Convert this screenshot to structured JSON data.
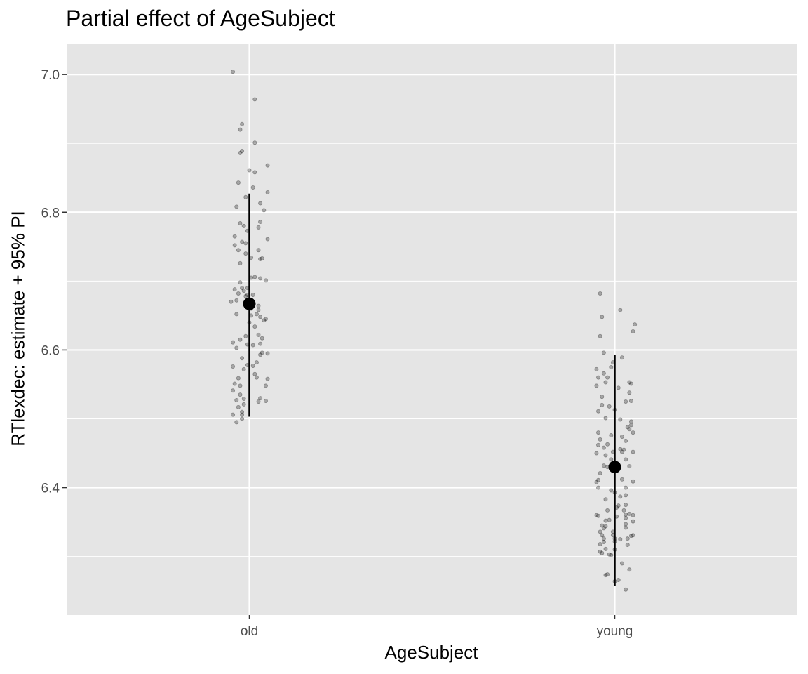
{
  "chart_data": {
    "type": "scatter",
    "title": "Partial effect of AgeSubject",
    "xlabel": "AgeSubject",
    "ylabel": "RTlexdec: estimate + 95% PI",
    "categories": [
      "old",
      "young"
    ],
    "ylim": [
      6.215,
      7.045
    ],
    "yticks": [
      6.4,
      6.6,
      6.8,
      7.0
    ],
    "ytick_labels": [
      "6.4",
      "6.6",
      "6.8",
      "7.0"
    ],
    "grid": true,
    "panel_background": "#e5e5e5",
    "grid_color": "#ffffff",
    "estimates": [
      {
        "category": "old",
        "estimate": 6.667,
        "lower": 6.503,
        "upper": 6.827
      },
      {
        "category": "young",
        "estimate": 6.43,
        "lower": 6.257,
        "upper": 6.593
      }
    ],
    "points": {
      "old": [
        [
          -0.09,
          7.004
        ],
        [
          0.03,
          6.964
        ],
        [
          -0.04,
          6.928
        ],
        [
          -0.05,
          6.92
        ],
        [
          0.03,
          6.901
        ],
        [
          -0.04,
          6.889
        ],
        [
          -0.05,
          6.886
        ],
        [
          0.1,
          6.868
        ],
        [
          0.0,
          6.861
        ],
        [
          0.03,
          6.858
        ],
        [
          -0.06,
          6.843
        ],
        [
          0.02,
          6.836
        ],
        [
          0.1,
          6.829
        ],
        [
          -0.02,
          6.822
        ],
        [
          0.06,
          6.813
        ],
        [
          -0.07,
          6.808
        ],
        [
          0.08,
          6.803
        ],
        [
          0.06,
          6.786
        ],
        [
          -0.05,
          6.784
        ],
        [
          -0.03,
          6.78
        ],
        [
          0.05,
          6.778
        ],
        [
          -0.01,
          6.773
        ],
        [
          -0.08,
          6.765
        ],
        [
          0.1,
          6.761
        ],
        [
          -0.04,
          6.757
        ],
        [
          -0.02,
          6.755
        ],
        [
          -0.08,
          6.752
        ],
        [
          -0.06,
          6.745
        ],
        [
          0.05,
          6.745
        ],
        [
          -0.02,
          6.74
        ],
        [
          0.01,
          6.734
        ],
        [
          0.07,
          6.733
        ],
        [
          0.06,
          6.732
        ],
        [
          -0.05,
          6.726
        ],
        [
          0.03,
          6.706
        ],
        [
          0.01,
          6.705
        ],
        [
          0.06,
          6.704
        ],
        [
          0.09,
          6.701
        ],
        [
          -0.05,
          6.698
        ],
        [
          -0.04,
          6.69
        ],
        [
          -0.01,
          6.69
        ],
        [
          -0.08,
          6.688
        ],
        [
          -0.03,
          6.686
        ],
        [
          -0.06,
          6.682
        ],
        [
          0.02,
          6.68
        ],
        [
          -0.01,
          6.68
        ],
        [
          -0.02,
          6.678
        ],
        [
          -0.07,
          6.672
        ],
        [
          -0.1,
          6.67
        ],
        [
          0.05,
          6.664
        ],
        [
          0.01,
          6.66
        ],
        [
          0.05,
          6.658
        ],
        [
          0.04,
          6.652
        ],
        [
          0.01,
          6.65
        ],
        [
          -0.07,
          6.652
        ],
        [
          0.06,
          6.648
        ],
        [
          0.09,
          6.645
        ],
        [
          0.0,
          6.64
        ],
        [
          0.08,
          6.643
        ],
        [
          0.03,
          6.634
        ],
        [
          0.05,
          6.622
        ],
        [
          -0.02,
          6.62
        ],
        [
          0.07,
          6.617
        ],
        [
          -0.05,
          6.615
        ],
        [
          -0.09,
          6.611
        ],
        [
          0.06,
          6.609
        ],
        [
          -0.01,
          6.608
        ],
        [
          0.02,
          6.607
        ],
        [
          -0.07,
          6.603
        ],
        [
          0.07,
          6.596
        ],
        [
          0.1,
          6.595
        ],
        [
          0.06,
          6.593
        ],
        [
          -0.04,
          6.588
        ],
        [
          0.04,
          6.582
        ],
        [
          0.02,
          6.577
        ],
        [
          -0.01,
          6.578
        ],
        [
          -0.09,
          6.576
        ],
        [
          -0.03,
          6.572
        ],
        [
          0.03,
          6.565
        ],
        [
          0.04,
          6.56
        ],
        [
          -0.06,
          6.559
        ],
        [
          0.1,
          6.558
        ],
        [
          -0.08,
          6.551
        ],
        [
          -0.05,
          6.548
        ],
        [
          0.09,
          6.548
        ],
        [
          -0.09,
          6.541
        ],
        [
          -0.05,
          6.535
        ],
        [
          0.06,
          6.53
        ],
        [
          -0.03,
          6.529
        ],
        [
          -0.07,
          6.527
        ],
        [
          0.09,
          6.526
        ],
        [
          0.05,
          6.525
        ],
        [
          -0.03,
          6.521
        ],
        [
          -0.06,
          6.517
        ],
        [
          -0.04,
          6.51
        ],
        [
          -0.04,
          6.506
        ],
        [
          -0.09,
          6.506
        ],
        [
          -0.04,
          6.5
        ],
        [
          -0.07,
          6.495
        ]
      ],
      "young": [
        [
          -0.08,
          6.682
        ],
        [
          0.03,
          6.658
        ],
        [
          -0.07,
          6.648
        ],
        [
          0.11,
          6.637
        ],
        [
          0.1,
          6.627
        ],
        [
          -0.08,
          6.62
        ],
        [
          -0.06,
          6.596
        ],
        [
          0.04,
          6.589
        ],
        [
          -0.01,
          6.582
        ],
        [
          -0.02,
          6.575
        ],
        [
          -0.1,
          6.572
        ],
        [
          -0.06,
          6.566
        ],
        [
          -0.09,
          6.56
        ],
        [
          -0.04,
          6.56
        ],
        [
          -0.05,
          6.553
        ],
        [
          0.08,
          6.553
        ],
        [
          0.09,
          6.551
        ],
        [
          -0.1,
          6.548
        ],
        [
          0.02,
          6.545
        ],
        [
          0.08,
          6.538
        ],
        [
          -0.07,
          6.532
        ],
        [
          0.09,
          6.526
        ],
        [
          -0.07,
          6.52
        ],
        [
          0.06,
          6.525
        ],
        [
          -0.03,
          6.518
        ],
        [
          0.0,
          6.513
        ],
        [
          -0.09,
          6.511
        ],
        [
          -0.05,
          6.501
        ],
        [
          0.03,
          6.499
        ],
        [
          0.09,
          6.496
        ],
        [
          0.09,
          6.491
        ],
        [
          0.07,
          6.488
        ],
        [
          0.08,
          6.485
        ],
        [
          -0.09,
          6.48
        ],
        [
          0.1,
          6.48
        ],
        [
          -0.02,
          6.476
        ],
        [
          0.04,
          6.474
        ],
        [
          -0.08,
          6.47
        ],
        [
          0.06,
          6.468
        ],
        [
          -0.04,
          6.463
        ],
        [
          -0.09,
          6.462
        ],
        [
          -0.06,
          6.458
        ],
        [
          0.03,
          6.456
        ],
        [
          0.05,
          6.455
        ],
        [
          0.04,
          6.452
        ],
        [
          -0.01,
          6.452
        ],
        [
          -0.1,
          6.45
        ],
        [
          0.1,
          6.452
        ],
        [
          -0.05,
          6.447
        ],
        [
          0.06,
          6.441
        ],
        [
          -0.02,
          6.441
        ],
        [
          -0.06,
          6.432
        ],
        [
          0.08,
          6.431
        ],
        [
          -0.04,
          6.43
        ],
        [
          0.0,
          6.426
        ],
        [
          -0.08,
          6.421
        ],
        [
          0.04,
          6.412
        ],
        [
          -0.09,
          6.411
        ],
        [
          -0.1,
          6.408
        ],
        [
          0.1,
          6.409
        ],
        [
          0.06,
          6.4
        ],
        [
          -0.09,
          6.4
        ],
        [
          -0.02,
          6.396
        ],
        [
          0.0,
          6.393
        ],
        [
          0.06,
          6.389
        ],
        [
          0.03,
          6.387
        ],
        [
          -0.05,
          6.383
        ],
        [
          0.06,
          6.375
        ],
        [
          0.02,
          6.374
        ],
        [
          0.01,
          6.371
        ],
        [
          -0.04,
          6.367
        ],
        [
          0.05,
          6.367
        ],
        [
          0.08,
          6.362
        ],
        [
          0.06,
          6.361
        ],
        [
          0.1,
          6.36
        ],
        [
          -0.1,
          6.36
        ],
        [
          -0.09,
          6.359
        ],
        [
          0.01,
          6.358
        ],
        [
          0.06,
          6.356
        ],
        [
          -0.03,
          6.353
        ],
        [
          -0.05,
          6.352
        ],
        [
          0.1,
          6.351
        ],
        [
          0.06,
          6.347
        ],
        [
          -0.07,
          6.345
        ],
        [
          -0.05,
          6.344
        ],
        [
          0.06,
          6.342
        ],
        [
          -0.06,
          6.341
        ],
        [
          -0.08,
          6.336
        ],
        [
          -0.01,
          6.336
        ],
        [
          -0.01,
          6.331
        ],
        [
          -0.07,
          6.331
        ],
        [
          0.1,
          6.331
        ],
        [
          0.09,
          6.33
        ],
        [
          0.0,
          6.326
        ],
        [
          0.07,
          6.326
        ],
        [
          -0.06,
          6.326
        ],
        [
          0.03,
          6.325
        ],
        [
          0.0,
          6.322
        ],
        [
          -0.06,
          6.321
        ],
        [
          0.07,
          6.317
        ],
        [
          -0.08,
          6.318
        ],
        [
          -0.05,
          6.311
        ],
        [
          0.0,
          6.31
        ],
        [
          -0.08,
          6.307
        ],
        [
          -0.07,
          6.305
        ],
        [
          -0.03,
          6.303
        ],
        [
          -0.02,
          6.302
        ],
        [
          0.04,
          6.29
        ],
        [
          0.08,
          6.281
        ],
        [
          -0.04,
          6.274
        ],
        [
          -0.05,
          6.273
        ],
        [
          0.02,
          6.266
        ],
        [
          0.0,
          6.264
        ],
        [
          0.06,
          6.252
        ]
      ]
    }
  }
}
